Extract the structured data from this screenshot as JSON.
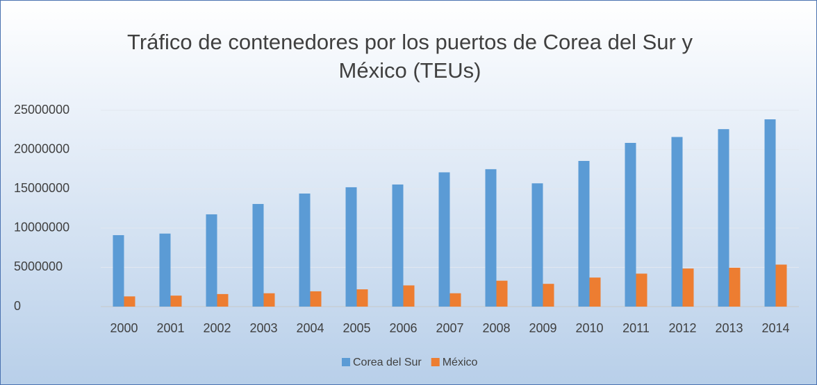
{
  "chart_data": {
    "type": "bar",
    "title": "Tráfico de contenedores por los puertos de Corea del Sur y México (TEUs)",
    "categories": [
      "2000",
      "2001",
      "2002",
      "2003",
      "2004",
      "2005",
      "2006",
      "2007",
      "2008",
      "2009",
      "2010",
      "2011",
      "2012",
      "2013",
      "2014"
    ],
    "series": [
      {
        "name": "Corea del Sur",
        "color": "#5b9bd5",
        "values": [
          9100000,
          9300000,
          11750000,
          13070000,
          14400000,
          15200000,
          15550000,
          17100000,
          17500000,
          15700000,
          18550000,
          20850000,
          21600000,
          22600000,
          23850000
        ]
      },
      {
        "name": "México",
        "color": "#ed7d31",
        "values": [
          1300000,
          1400000,
          1600000,
          1700000,
          1950000,
          2200000,
          2700000,
          1700000,
          3300000,
          2900000,
          3700000,
          4200000,
          4850000,
          4950000,
          5350000
        ]
      }
    ],
    "ylim": [
      0,
      25000000
    ],
    "yticks": [
      0,
      5000000,
      10000000,
      15000000,
      20000000,
      25000000
    ],
    "grid": true,
    "legend": "bottom"
  }
}
